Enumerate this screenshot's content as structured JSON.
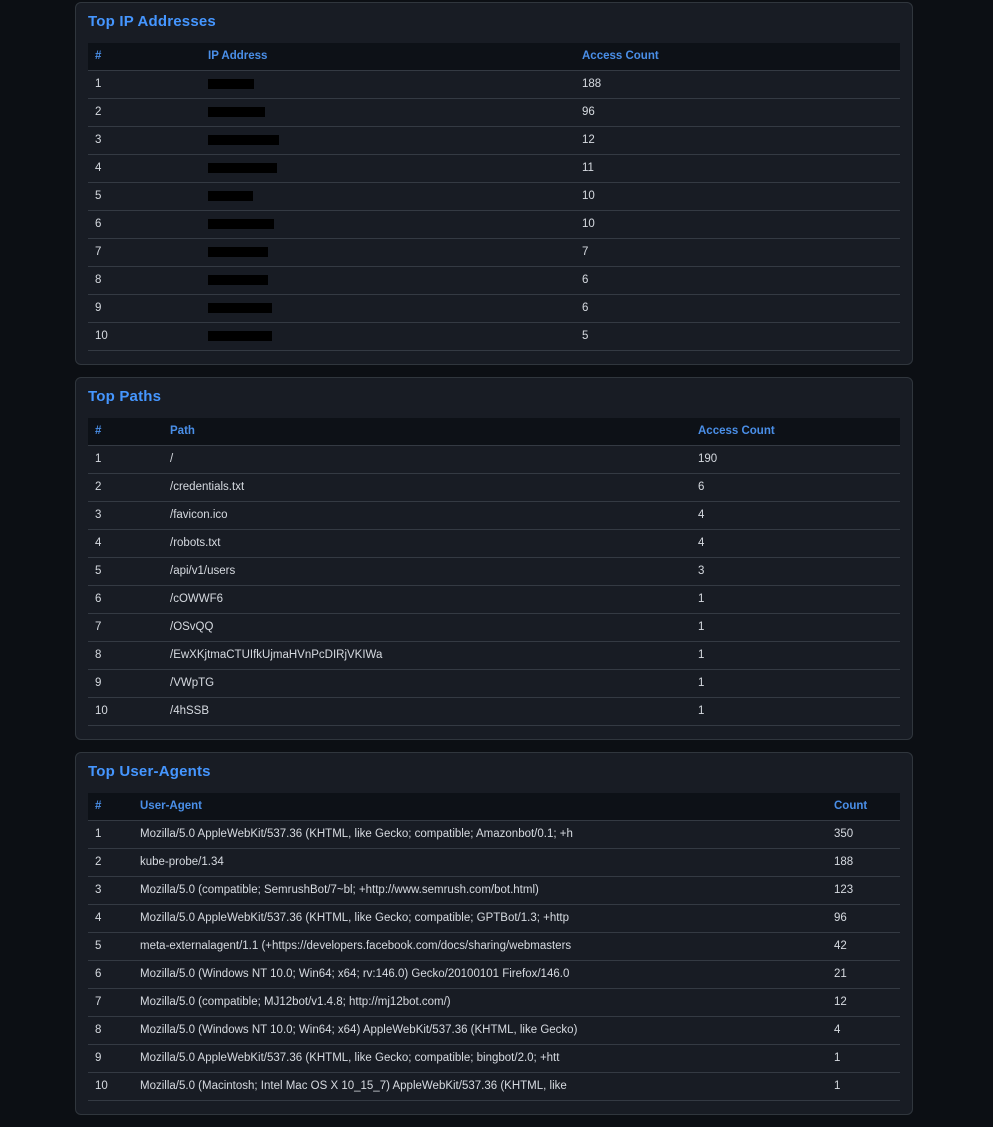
{
  "theme": {
    "page_bg": "#0c0f14",
    "card_bg": "#181c24",
    "card_border": "#30363d",
    "header_bg": "#0d1117",
    "row_border": "#343a43",
    "accent": "#4596ff",
    "header_text": "#4a8fe8",
    "text": "#d6dae0",
    "redaction": "#000000"
  },
  "panels": [
    {
      "title": "Top IP Addresses",
      "columns": [
        "#",
        "IP Address",
        "Access Count"
      ],
      "rows": [
        {
          "rank": "1",
          "value": "",
          "redacted": true,
          "redaction_width": 46,
          "count": "188"
        },
        {
          "rank": "2",
          "value": "",
          "redacted": true,
          "redaction_width": 57,
          "count": "96"
        },
        {
          "rank": "3",
          "value": "",
          "redacted": true,
          "redaction_width": 71,
          "count": "12"
        },
        {
          "rank": "4",
          "value": "",
          "redacted": true,
          "redaction_width": 69,
          "count": "11"
        },
        {
          "rank": "5",
          "value": "",
          "redacted": true,
          "redaction_width": 45,
          "count": "10"
        },
        {
          "rank": "6",
          "value": "",
          "redacted": true,
          "redaction_width": 66,
          "count": "10"
        },
        {
          "rank": "7",
          "value": "",
          "redacted": true,
          "redaction_width": 60,
          "count": "7"
        },
        {
          "rank": "8",
          "value": "",
          "redacted": true,
          "redaction_width": 60,
          "count": "6"
        },
        {
          "rank": "9",
          "value": "",
          "redacted": true,
          "redaction_width": 64,
          "count": "6"
        },
        {
          "rank": "10",
          "value": "",
          "redacted": true,
          "redaction_width": 64,
          "count": "5"
        }
      ]
    },
    {
      "title": "Top Paths",
      "columns": [
        "#",
        "Path",
        "Access Count"
      ],
      "rows": [
        {
          "rank": "1",
          "value": "/",
          "count": "190"
        },
        {
          "rank": "2",
          "value": "/credentials.txt",
          "count": "6"
        },
        {
          "rank": "3",
          "value": "/favicon.ico",
          "count": "4"
        },
        {
          "rank": "4",
          "value": "/robots.txt",
          "count": "4"
        },
        {
          "rank": "5",
          "value": "/api/v1/users",
          "count": "3"
        },
        {
          "rank": "6",
          "value": "/cOWWF6",
          "count": "1"
        },
        {
          "rank": "7",
          "value": "/OSvQQ",
          "count": "1"
        },
        {
          "rank": "8",
          "value": "/EwXKjtmaCTUIfkUjmaHVnPcDIRjVKIWa",
          "count": "1"
        },
        {
          "rank": "9",
          "value": "/VWpTG",
          "count": "1"
        },
        {
          "rank": "10",
          "value": "/4hSSB",
          "count": "1"
        }
      ]
    },
    {
      "title": "Top User-Agents",
      "columns": [
        "#",
        "User-Agent",
        "Count"
      ],
      "rows": [
        {
          "rank": "1",
          "value": "Mozilla/5.0 AppleWebKit/537.36 (KHTML, like Gecko; compatible; Amazonbot/0.1; +h",
          "count": "350"
        },
        {
          "rank": "2",
          "value": "kube-probe/1.34",
          "count": "188"
        },
        {
          "rank": "3",
          "value": "Mozilla/5.0 (compatible; SemrushBot/7~bl; +http://www.semrush.com/bot.html)",
          "count": "123"
        },
        {
          "rank": "4",
          "value": "Mozilla/5.0 AppleWebKit/537.36 (KHTML, like Gecko; compatible; GPTBot/1.3; +http",
          "count": "96"
        },
        {
          "rank": "5",
          "value": "meta-externalagent/1.1 (+https://developers.facebook.com/docs/sharing/webmasters",
          "count": "42"
        },
        {
          "rank": "6",
          "value": "Mozilla/5.0 (Windows NT 10.0; Win64; x64; rv:146.0) Gecko/20100101 Firefox/146.0",
          "count": "21"
        },
        {
          "rank": "7",
          "value": "Mozilla/5.0 (compatible; MJ12bot/v1.4.8; http://mj12bot.com/)",
          "count": "12"
        },
        {
          "rank": "8",
          "value": "Mozilla/5.0 (Windows NT 10.0; Win64; x64) AppleWebKit/537.36 (KHTML, like Gecko)",
          "count": "4"
        },
        {
          "rank": "9",
          "value": "Mozilla/5.0 AppleWebKit/537.36 (KHTML, like Gecko; compatible; bingbot/2.0; +htt",
          "count": "1"
        },
        {
          "rank": "10",
          "value": "Mozilla/5.0 (Macintosh; Intel Mac OS X 10_15_7) AppleWebKit/537.36 (KHTML, like",
          "count": "1"
        }
      ]
    }
  ]
}
